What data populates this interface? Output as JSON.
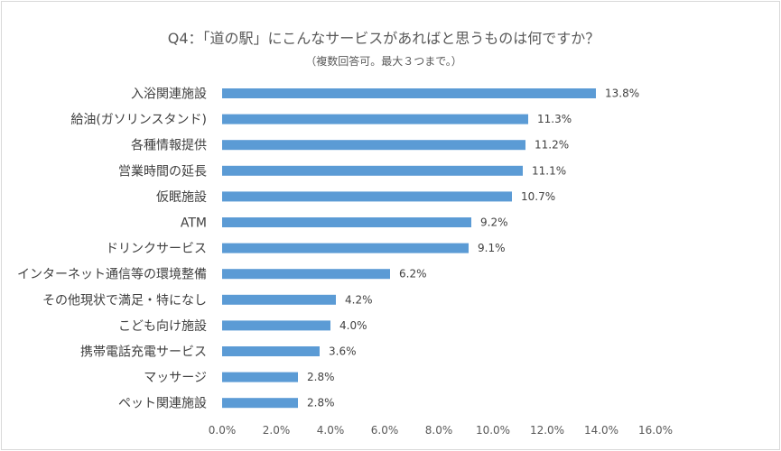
{
  "chart_data": {
    "type": "bar",
    "orientation": "horizontal",
    "title": "Q4：「道の駅」にこんなサービスがあればと思うものは何ですか？",
    "subtitle": "（複数回答可。最大３つまで。）",
    "categories": [
      "入浴関連施設",
      "給油(ガソリンスタンド)",
      "各種情報提供",
      "営業時間の延長",
      "仮眠施設",
      "ATM",
      "ドリンクサービス",
      "インターネット通信等の環境整備",
      "その他現状で満足・特になし",
      "こども向け施設",
      "携帯電話充電サービス",
      "マッサージ",
      "ペット関連施設"
    ],
    "values": [
      13.8,
      11.3,
      11.2,
      11.1,
      10.7,
      9.2,
      9.1,
      6.2,
      4.2,
      4.0,
      3.6,
      2.8,
      2.8
    ],
    "value_labels": [
      "13.8%",
      "11.3%",
      "11.2%",
      "11.1%",
      "10.7%",
      "9.2%",
      "9.1%",
      "6.2%",
      "4.2%",
      "4.0%",
      "3.6%",
      "2.8%",
      "2.8%"
    ],
    "xlim": [
      0,
      16
    ],
    "x_ticks": [
      0,
      2,
      4,
      6,
      8,
      10,
      12,
      14,
      16
    ],
    "x_tick_labels": [
      "0.0%",
      "2.0%",
      "4.0%",
      "6.0%",
      "8.0%",
      "10.0%",
      "12.0%",
      "14.0%",
      "16.0%"
    ],
    "xlabel": "",
    "ylabel": "",
    "grid": false,
    "legend": "none",
    "bar_color": "#5b9bd5"
  }
}
